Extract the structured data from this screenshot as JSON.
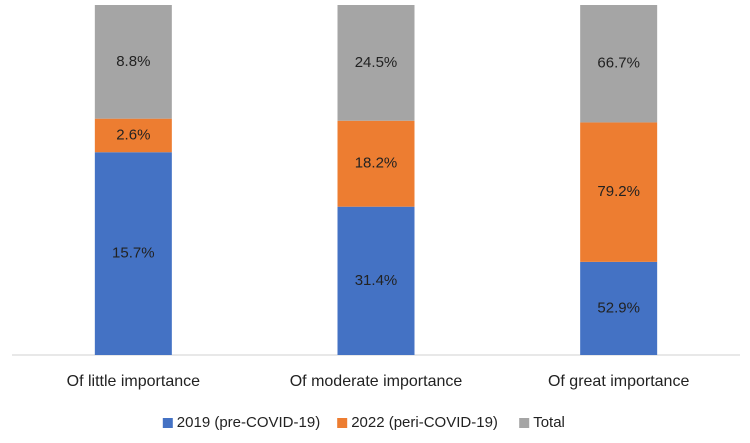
{
  "chart_data": {
    "type": "bar",
    "stacked": "percent",
    "categories": [
      "Of little importance",
      "Of moderate importance",
      "Of great importance"
    ],
    "series": [
      {
        "name": "2019 (pre-COVID-19)",
        "color": "#4472c4",
        "values": [
          15.7,
          31.4,
          52.9
        ],
        "value_labels": [
          "15.7%",
          "31.4%",
          "52.9%"
        ]
      },
      {
        "name": "2022 (peri-COVID-19)",
        "color": "#ed7d31",
        "values": [
          2.6,
          18.2,
          79.2
        ],
        "value_labels": [
          "2.6%",
          "18.2%",
          "79.2%"
        ]
      },
      {
        "name": "Total",
        "color": "#a5a5a5",
        "values": [
          8.8,
          24.5,
          66.7
        ],
        "value_labels": [
          "8.8%",
          "24.5%",
          "66.7%"
        ]
      }
    ],
    "legend": "bottom"
  }
}
